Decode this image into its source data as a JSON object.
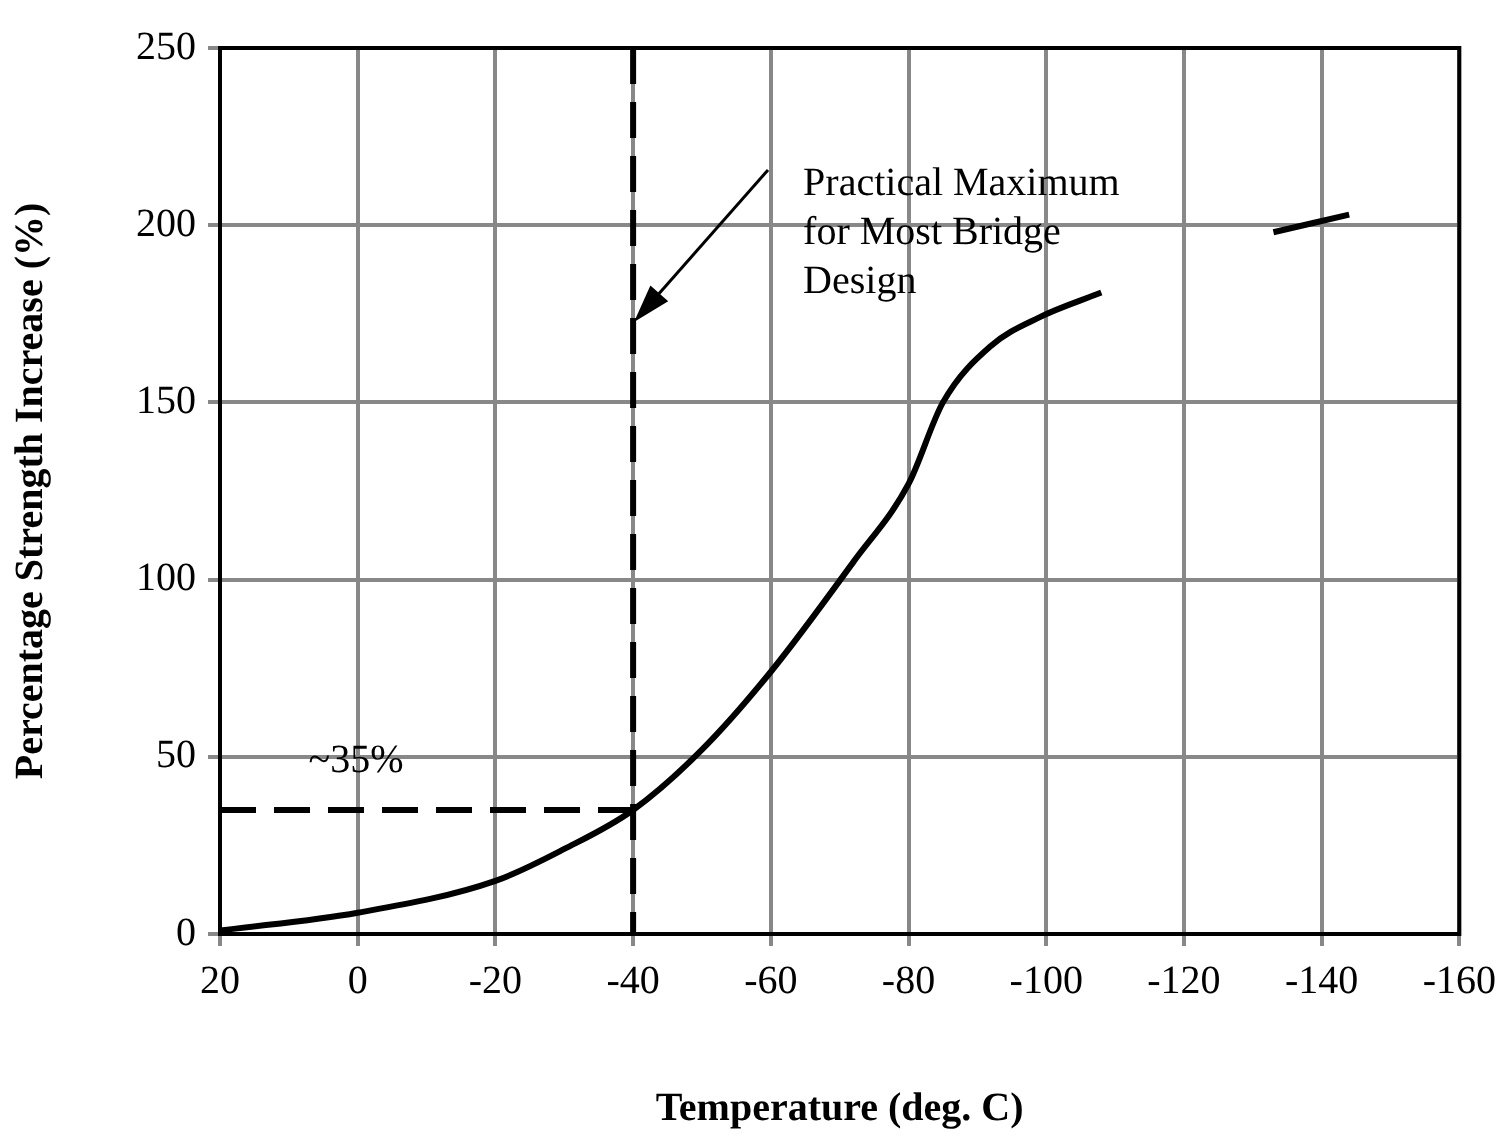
{
  "chart_data": {
    "type": "line",
    "xlabel": "Temperature (deg. C)",
    "ylabel": "Percentage Strength Increase (%)",
    "series": [
      {
        "color": "#000000",
        "x": [
          20,
          0,
          -20,
          -30,
          -40,
          -50,
          -60,
          -72,
          -80,
          -85,
          -92,
          -99,
          -108,
          -120,
          -133,
          -144
        ],
        "values": [
          1,
          6,
          15,
          24,
          35,
          52,
          74,
          105,
          127,
          150,
          166,
          174,
          181,
          null,
          198,
          203
        ]
      }
    ],
    "xlim": [
      20,
      -160
    ],
    "xticks": [
      20,
      0,
      -20,
      -40,
      -60,
      -80,
      -100,
      -120,
      -140,
      -160
    ],
    "ylim": [
      0,
      250
    ],
    "yticks": [
      0,
      50,
      100,
      150,
      200,
      250
    ],
    "grid": true,
    "marker": "none",
    "line_style": "solid",
    "ref_lines": [
      {
        "axis": "x",
        "value": -40,
        "line_style": "dashed",
        "color": "#000000"
      },
      {
        "axis": "y",
        "value": 35,
        "label": "~35%",
        "line_style": "dashed",
        "color": "#000000"
      }
    ],
    "annotations": [
      "Practical Maximum\nfor Most Bridge\nDesign"
    ]
  }
}
